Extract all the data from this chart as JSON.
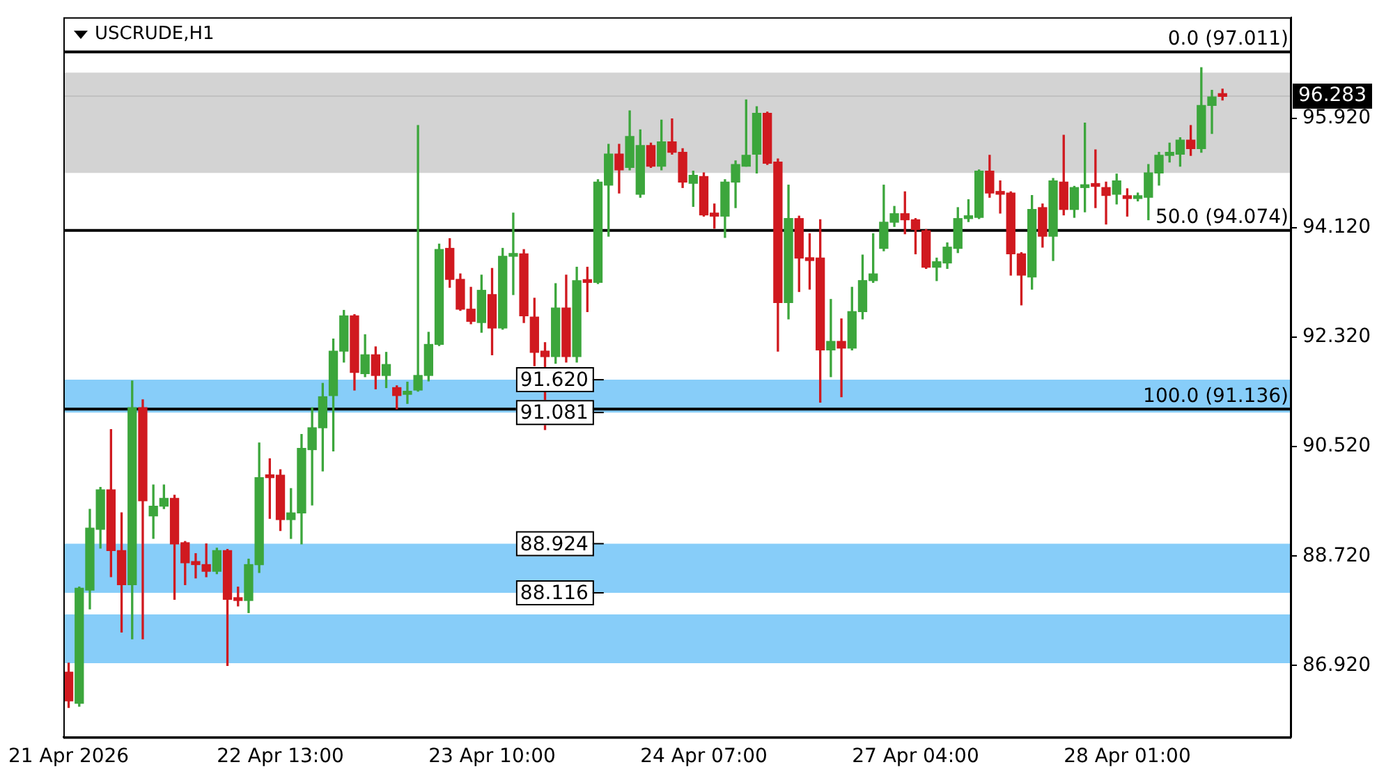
{
  "chart_data": {
    "type": "candlestick",
    "title": "USCRUDE,H1",
    "categories": [
      "21 Apr 2026",
      null,
      null,
      null,
      null,
      null,
      null,
      null,
      null,
      null,
      null,
      null,
      null,
      null,
      null,
      null,
      null,
      null,
      null,
      null,
      "22 Apr 13:00",
      null,
      null,
      null,
      null,
      null,
      null,
      null,
      null,
      null,
      null,
      null,
      null,
      null,
      null,
      null,
      null,
      null,
      null,
      null,
      "23 Apr 10:00",
      null,
      null,
      null,
      null,
      null,
      null,
      null,
      null,
      null,
      null,
      null,
      null,
      null,
      null,
      null,
      null,
      null,
      null,
      null,
      "24 Apr 07:00",
      null,
      null,
      null,
      null,
      null,
      null,
      null,
      null,
      null,
      null,
      null,
      null,
      null,
      null,
      null,
      null,
      null,
      null,
      null,
      "27 Apr 04:00",
      null,
      null,
      null,
      null,
      null,
      null,
      null,
      null,
      null,
      null,
      null,
      null,
      null,
      null,
      null,
      null,
      null,
      null,
      null,
      "28 Apr 01:00",
      null,
      null,
      null,
      null,
      null,
      null,
      null,
      null,
      null,
      null,
      null,
      null,
      null,
      null,
      null
    ],
    "ohlc": [
      [
        86.81,
        86.96,
        86.23,
        86.34
      ],
      [
        86.3,
        88.21,
        86.25,
        88.19
      ],
      [
        88.16,
        89.49,
        87.85,
        89.18
      ],
      [
        89.16,
        89.85,
        88.85,
        89.81
      ],
      [
        89.81,
        90.8,
        88.38,
        88.81
      ],
      [
        88.81,
        89.43,
        87.47,
        88.25
      ],
      [
        88.25,
        91.6,
        87.36,
        91.16
      ],
      [
        91.16,
        91.29,
        87.36,
        89.63
      ],
      [
        89.38,
        89.89,
        89.01,
        89.54
      ],
      [
        89.54,
        89.89,
        89.5,
        89.67
      ],
      [
        89.67,
        89.72,
        88.01,
        88.92
      ],
      [
        88.94,
        88.96,
        88.25,
        88.61
      ],
      [
        88.63,
        88.76,
        88.36,
        88.58
      ],
      [
        88.58,
        88.92,
        88.38,
        88.47
      ],
      [
        88.47,
        88.85,
        88.43,
        88.81
      ],
      [
        88.81,
        88.83,
        86.92,
        88.01
      ],
      [
        88.03,
        88.21,
        87.9,
        87.99
      ],
      [
        87.99,
        88.67,
        87.79,
        88.58
      ],
      [
        88.58,
        90.58,
        88.45,
        90.01
      ],
      [
        90.03,
        90.32,
        89.34,
        90.01
      ],
      [
        90.05,
        90.14,
        89.14,
        89.32
      ],
      [
        89.32,
        89.83,
        89.01,
        89.43
      ],
      [
        89.43,
        90.72,
        88.92,
        90.49
      ],
      [
        90.47,
        91.16,
        89.56,
        90.83
      ],
      [
        90.83,
        91.56,
        90.12,
        91.34
      ],
      [
        91.36,
        92.29,
        90.45,
        92.09
      ],
      [
        92.09,
        92.76,
        91.91,
        92.67
      ],
      [
        92.67,
        92.69,
        91.45,
        91.74
      ],
      [
        91.72,
        92.36,
        91.67,
        92.03
      ],
      [
        92.03,
        92.16,
        91.47,
        91.69
      ],
      [
        91.69,
        92.07,
        91.49,
        91.87
      ],
      [
        91.49,
        91.52,
        91.14,
        91.36
      ],
      [
        91.38,
        91.58,
        91.23,
        91.43
      ],
      [
        91.45,
        95.8,
        91.43,
        91.69
      ],
      [
        91.69,
        92.4,
        91.6,
        92.2
      ],
      [
        92.2,
        93.85,
        92.18,
        93.76
      ],
      [
        93.78,
        93.94,
        93.14,
        93.27
      ],
      [
        93.27,
        93.36,
        92.76,
        92.78
      ],
      [
        92.78,
        93.14,
        92.54,
        92.58
      ],
      [
        92.56,
        93.34,
        92.4,
        93.09
      ],
      [
        93.02,
        93.45,
        92.03,
        92.47
      ],
      [
        92.47,
        93.78,
        92.45,
        93.65
      ],
      [
        93.65,
        94.36,
        93.02,
        93.69
      ],
      [
        93.69,
        93.76,
        92.56,
        92.67
      ],
      [
        92.65,
        92.96,
        91.85,
        92.07
      ],
      [
        92.09,
        92.23,
        90.8,
        92.0
      ],
      [
        92.0,
        93.2,
        91.89,
        92.8
      ],
      [
        92.8,
        93.34,
        91.91,
        92.0
      ],
      [
        92.0,
        93.47,
        91.91,
        93.25
      ],
      [
        93.25,
        93.47,
        92.74,
        93.22
      ],
      [
        93.22,
        94.91,
        93.2,
        94.87
      ],
      [
        94.82,
        95.49,
        93.98,
        95.33
      ],
      [
        95.33,
        95.49,
        94.69,
        95.07
      ],
      [
        95.11,
        96.04,
        95.07,
        95.62
      ],
      [
        94.67,
        95.73,
        94.62,
        95.47
      ],
      [
        95.47,
        95.51,
        95.11,
        95.13
      ],
      [
        95.13,
        95.89,
        95.07,
        95.53
      ],
      [
        95.53,
        95.91,
        95.33,
        95.36
      ],
      [
        95.36,
        95.42,
        94.78,
        94.87
      ],
      [
        94.85,
        95.05,
        94.47,
        94.98
      ],
      [
        94.96,
        95.02,
        94.31,
        94.33
      ],
      [
        94.36,
        94.51,
        94.11,
        94.31
      ],
      [
        94.31,
        94.91,
        93.96,
        94.87
      ],
      [
        94.87,
        95.22,
        94.45,
        95.16
      ],
      [
        95.13,
        96.22,
        95.13,
        95.31
      ],
      [
        95.33,
        96.11,
        95.02,
        96.0
      ],
      [
        96.0,
        96.02,
        95.16,
        95.18
      ],
      [
        95.2,
        95.25,
        92.09,
        92.89
      ],
      [
        92.89,
        94.82,
        92.62,
        94.27
      ],
      [
        94.27,
        94.31,
        93.07,
        93.62
      ],
      [
        93.62,
        94.02,
        93.11,
        93.58
      ],
      [
        93.62,
        94.25,
        91.25,
        92.11
      ],
      [
        92.11,
        92.94,
        91.67,
        92.25
      ],
      [
        92.25,
        92.62,
        91.34,
        92.14
      ],
      [
        92.14,
        93.14,
        92.11,
        92.74
      ],
      [
        92.74,
        93.67,
        92.62,
        93.25
      ],
      [
        93.25,
        94.02,
        93.22,
        93.36
      ],
      [
        93.78,
        94.82,
        93.74,
        94.21
      ],
      [
        94.21,
        94.47,
        94.14,
        94.35
      ],
      [
        94.35,
        94.71,
        94.02,
        94.25
      ],
      [
        94.25,
        94.27,
        93.69,
        94.09
      ],
      [
        94.07,
        94.09,
        93.45,
        93.47
      ],
      [
        93.47,
        93.62,
        93.25,
        93.56
      ],
      [
        93.54,
        93.87,
        93.45,
        93.8
      ],
      [
        93.78,
        94.45,
        93.71,
        94.27
      ],
      [
        94.27,
        94.58,
        94.22,
        94.31
      ],
      [
        94.29,
        95.07,
        94.27,
        95.05
      ],
      [
        95.05,
        95.31,
        94.62,
        94.69
      ],
      [
        94.69,
        94.89,
        94.36,
        94.67
      ],
      [
        94.69,
        94.71,
        93.34,
        93.69
      ],
      [
        93.69,
        93.71,
        92.85,
        93.34
      ],
      [
        93.31,
        94.65,
        93.11,
        94.42
      ],
      [
        94.45,
        94.51,
        93.8,
        93.98
      ],
      [
        93.98,
        94.93,
        93.58,
        94.89
      ],
      [
        94.87,
        95.64,
        94.33,
        94.42
      ],
      [
        94.42,
        94.8,
        94.29,
        94.78
      ],
      [
        94.78,
        95.84,
        94.38,
        94.82
      ],
      [
        94.82,
        95.4,
        94.45,
        94.8
      ],
      [
        94.78,
        94.87,
        94.18,
        94.65
      ],
      [
        94.67,
        95.0,
        94.51,
        94.89
      ],
      [
        94.62,
        94.76,
        94.31,
        94.6
      ],
      [
        94.6,
        94.69,
        94.56,
        94.62
      ],
      [
        94.62,
        95.16,
        94.25,
        95.02
      ],
      [
        95.02,
        95.36,
        94.82,
        95.31
      ],
      [
        95.31,
        95.51,
        95.2,
        95.36
      ],
      [
        95.33,
        95.6,
        95.13,
        95.56
      ],
      [
        95.56,
        95.8,
        95.31,
        95.42
      ],
      [
        95.42,
        96.75,
        95.36,
        96.13
      ],
      [
        96.13,
        96.38,
        95.67,
        96.27
      ],
      [
        96.31,
        96.4,
        96.22,
        96.28
      ],
      null,
      null,
      null,
      null,
      null,
      null
    ],
    "colors": [
      "#d0191f",
      "#3ca63c",
      "#3ca63c",
      "#3ca63c",
      "#d0191f",
      "#d0191f",
      "#3ca63c",
      "#d0191f",
      "#3ca63c",
      "#3ca63c",
      "#d0191f",
      "#d0191f",
      "#d0191f",
      "#d0191f",
      "#3ca63c",
      "#d0191f",
      "#d0191f",
      "#3ca63c",
      "#3ca63c",
      "#d0191f",
      "#d0191f",
      "#3ca63c",
      "#3ca63c",
      "#3ca63c",
      "#3ca63c",
      "#3ca63c",
      "#3ca63c",
      "#d0191f",
      "#3ca63c",
      "#d0191f",
      "#3ca63c",
      "#d0191f",
      "#3ca63c",
      "#3ca63c",
      "#3ca63c",
      "#3ca63c",
      "#d0191f",
      "#d0191f",
      "#d0191f",
      "#3ca63c",
      "#d0191f",
      "#3ca63c",
      "#3ca63c",
      "#d0191f",
      "#d0191f",
      "#d0191f",
      "#3ca63c",
      "#d0191f",
      "#3ca63c",
      "#d0191f",
      "#3ca63c",
      "#3ca63c",
      "#d0191f",
      "#3ca63c",
      "#3ca63c",
      "#d0191f",
      "#3ca63c",
      "#d0191f",
      "#d0191f",
      "#3ca63c",
      "#d0191f",
      "#d0191f",
      "#3ca63c",
      "#3ca63c",
      "#3ca63c",
      "#3ca63c",
      "#d0191f",
      "#d0191f",
      "#3ca63c",
      "#d0191f",
      "#d0191f",
      "#d0191f",
      "#3ca63c",
      "#d0191f",
      "#3ca63c",
      "#3ca63c",
      "#3ca63c",
      "#3ca63c",
      "#3ca63c",
      "#d0191f",
      "#d0191f",
      "#d0191f",
      "#3ca63c",
      "#3ca63c",
      "#3ca63c",
      "#3ca63c",
      "#3ca63c",
      "#d0191f",
      "#d0191f",
      "#d0191f",
      "#d0191f",
      "#3ca63c",
      "#d0191f",
      "#3ca63c",
      "#d0191f",
      "#3ca63c",
      "#3ca63c",
      "#d0191f",
      "#d0191f",
      "#3ca63c",
      "#d0191f",
      "#3ca63c",
      "#3ca63c",
      "#3ca63c",
      "#3ca63c",
      "#3ca63c",
      "#d0191f",
      "#3ca63c",
      "#3ca63c",
      "#d0191f",
      null,
      null,
      null,
      null,
      null,
      null
    ],
    "ylim": [
      85.74,
      97.58
    ],
    "yticks": [
      {
        "value": 86.92,
        "label": "86.920"
      },
      {
        "value": 88.72,
        "label": "88.720"
      },
      {
        "value": 90.52,
        "label": "90.520"
      },
      {
        "value": 92.32,
        "label": "92.320"
      },
      {
        "value": 94.12,
        "label": "94.120"
      },
      {
        "value": 95.92,
        "label": "95.920"
      }
    ],
    "grid": false,
    "legend": false,
    "ref_lines": [
      {
        "axis": "y",
        "value": 97.011,
        "label": "0.0 (97.011)",
        "color": "#000000"
      },
      {
        "axis": "y",
        "value": 94.074,
        "label": "50.0 (94.074)",
        "color": "#000000"
      },
      {
        "axis": "y",
        "value": 91.136,
        "label": "100.0 (91.136)",
        "color": "#000000"
      },
      {
        "axis": "y",
        "value": 96.283,
        "label": "96.283",
        "color": "#c0c0c0"
      }
    ],
    "bands": [
      {
        "axis": "y",
        "from": 95.02,
        "to": 96.67,
        "color": "#d3d3d3"
      },
      {
        "axis": "y",
        "from": 91.081,
        "to": 91.62,
        "color": "#87cdf9"
      },
      {
        "axis": "y",
        "from": 88.116,
        "to": 88.924,
        "color": "#87cdf9"
      },
      {
        "axis": "y",
        "from": 86.96,
        "to": 87.76,
        "color": "#87cdf9"
      }
    ],
    "annotations": [
      {
        "text": "91.620",
        "y": 91.62
      },
      {
        "text": "91.081",
        "y": 91.081
      },
      {
        "text": "88.924",
        "y": 88.924
      },
      {
        "text": "88.116",
        "y": 88.116
      }
    ]
  }
}
